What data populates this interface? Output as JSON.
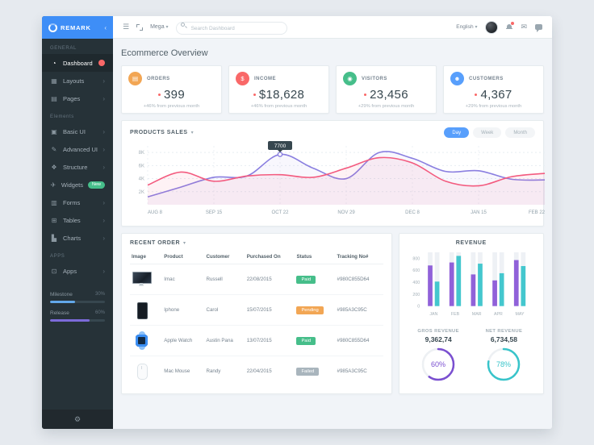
{
  "brand": {
    "name": "REMARK"
  },
  "sidebar": {
    "sections": [
      {
        "label": "GENERAL",
        "items": [
          {
            "id": "dashboard",
            "label": "Dashboard",
            "icon": "dashboard-icon",
            "glyph": "◔",
            "active": true,
            "badge": "dot"
          },
          {
            "id": "layouts",
            "label": "Layouts",
            "icon": "layouts-icon",
            "glyph": "▦",
            "chevron": true
          },
          {
            "id": "pages",
            "label": "Pages",
            "icon": "pages-icon",
            "glyph": "▤",
            "chevron": true
          }
        ]
      },
      {
        "label": "Elements",
        "items": [
          {
            "id": "basic-ui",
            "label": "Basic UI",
            "icon": "basic-ui-icon",
            "glyph": "▣",
            "chevron": true
          },
          {
            "id": "advanced-ui",
            "label": "Advanced UI",
            "icon": "advanced-ui-icon",
            "glyph": "✎",
            "chevron": true
          },
          {
            "id": "structure",
            "label": "Structure",
            "icon": "structure-icon",
            "glyph": "❖",
            "chevron": true
          },
          {
            "id": "widgets",
            "label": "Widgets",
            "icon": "widgets-icon",
            "glyph": "✈",
            "badge": "new",
            "badge_text": "New"
          },
          {
            "id": "forms",
            "label": "Forms",
            "icon": "forms-icon",
            "glyph": "▥",
            "chevron": true
          },
          {
            "id": "tables",
            "label": "Tables",
            "icon": "tables-icon",
            "glyph": "⊞",
            "chevron": true
          },
          {
            "id": "charts",
            "label": "Charts",
            "icon": "charts-icon",
            "glyph": "▙",
            "chevron": true
          }
        ]
      },
      {
        "label": "APPS",
        "items": [
          {
            "id": "apps",
            "label": "Apps",
            "icon": "apps-icon",
            "glyph": "⊡",
            "chevron": true
          }
        ]
      }
    ],
    "progress": [
      {
        "label": "Milestone",
        "value": "30%",
        "fill": 45,
        "color": "#62a8ea"
      },
      {
        "label": "Release",
        "value": "60%",
        "fill": 72,
        "color": "#7c6bd9"
      }
    ]
  },
  "header": {
    "menu_label": "Mega",
    "search_placeholder": "Search Dashboard",
    "language": "English",
    "has_notification": true
  },
  "page": {
    "title": "Ecommerce Overview"
  },
  "stats": [
    {
      "label": "ORDERS",
      "value": "399",
      "note": "+46% from previous month",
      "color": "#f2a654",
      "icon": "cart-icon",
      "glyph": "▤"
    },
    {
      "label": "INCOME",
      "value": "$18,628",
      "note": "+46% from previous month",
      "color": "#f96868",
      "icon": "dollar-icon",
      "glyph": "$"
    },
    {
      "label": "VISITORS",
      "value": "23,456",
      "note": "+29% from previous month",
      "color": "#46be8a",
      "icon": "eye-icon",
      "glyph": "◉"
    },
    {
      "label": "CUSTOMERS",
      "value": "4,367",
      "note": "+29% from previous month",
      "color": "#589ffc",
      "icon": "person-icon",
      "glyph": "☻"
    }
  ],
  "chart_data": [
    {
      "id": "products_sales",
      "type": "line",
      "title": "PRODUCTS SALES",
      "range_buttons": [
        "Day",
        "Week",
        "Month"
      ],
      "active_range": "Day",
      "x_labels": [
        "AUG 8",
        "SEP 15",
        "OCT 22",
        "NOV 29",
        "DEC 8",
        "JAN 15",
        "FEB 22"
      ],
      "y_ticks": [
        2,
        4,
        6,
        8
      ],
      "y_tick_labels": [
        "2K",
        "4K",
        "6K",
        "8K"
      ],
      "ylim": [
        0,
        9
      ],
      "x_sampled": [
        0,
        0.5,
        1,
        1.5,
        2,
        2.5,
        3,
        3.5,
        4,
        4.5,
        5,
        5.5,
        6
      ],
      "series": [
        {
          "name": "series-purple",
          "color": "#8a7fe0",
          "values": [
            1.2,
            2.7,
            4.2,
            4.4,
            7.7,
            5.6,
            4.0,
            8.0,
            7.1,
            5.1,
            5.2,
            3.9,
            3.8
          ]
        },
        {
          "name": "series-pink",
          "color": "#f35b7f",
          "values": [
            3.0,
            5.0,
            3.6,
            4.4,
            4.6,
            4.2,
            5.6,
            7.2,
            6.4,
            3.6,
            2.9,
            4.3,
            4.8
          ]
        }
      ],
      "tooltip": {
        "label": "7700",
        "series": 0,
        "index": 4
      }
    },
    {
      "id": "revenue",
      "type": "bar",
      "title": "REVENUE",
      "categories": [
        "JAN",
        "FEB",
        "MAR",
        "APR",
        "MAY"
      ],
      "series": [
        {
          "name": "series-purple",
          "color": "#9061d9",
          "values": [
            680,
            730,
            530,
            430,
            770
          ]
        },
        {
          "name": "series-teal",
          "color": "#44c7ce",
          "values": [
            410,
            840,
            710,
            550,
            670
          ]
        }
      ],
      "y_ticks": [
        0,
        200,
        400,
        600,
        800
      ],
      "ylim": [
        0,
        900
      ]
    }
  ],
  "orders_table": {
    "title": "RECENT ORDER",
    "columns": [
      "Image",
      "Product",
      "Customer",
      "Purchased On",
      "Status",
      "Tracking No#"
    ],
    "rows": [
      {
        "image": "imac",
        "product": "Imac",
        "customer": "Russell",
        "purchased": "22/08/2015",
        "status": "Paid",
        "status_type": "paid",
        "tracking": "#980C855D64"
      },
      {
        "image": "iphone",
        "product": "Iphone",
        "customer": "Carol",
        "purchased": "15/07/2015",
        "status": "Pending",
        "status_type": "pending",
        "tracking": "#985A3C95C"
      },
      {
        "image": "watch",
        "product": "Apple Watch",
        "customer": "Austin Pana",
        "purchased": "13/07/2015",
        "status": "Paid",
        "status_type": "paid",
        "tracking": "#980C855D64"
      },
      {
        "image": "mouse",
        "product": "Mac Mouse",
        "customer": "Randy",
        "purchased": "22/04/2015",
        "status": "Failed",
        "status_type": "failed",
        "tracking": "#985A3C95C"
      }
    ]
  },
  "gauges": [
    {
      "label": "GROS REVENUE",
      "value": "9,362,74",
      "percent": 60,
      "display": "60%",
      "color": "#7a4fd0"
    },
    {
      "label": "NET REVENUE",
      "value": "6,734,58",
      "percent": 78,
      "display": "78%",
      "color": "#38c4ca"
    }
  ]
}
